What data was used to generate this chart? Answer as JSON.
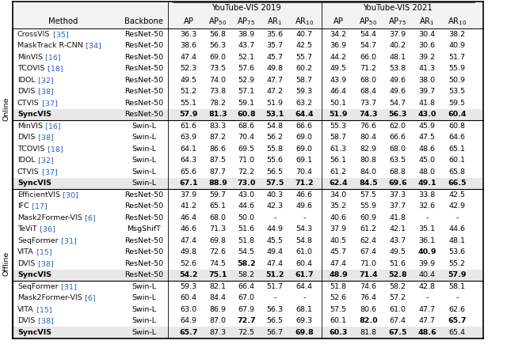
{
  "col_group1": "YouTube-VIS 2019",
  "col_group2": "YouTube-VIS 2021",
  "sections": [
    {
      "label": "Online",
      "rows": [
        {
          "method": "CrossVIS",
          "ref": " [35]",
          "backbone": "ResNet-50",
          "y19": [
            "36.3",
            "56.8",
            "38.9",
            "35.6",
            "40.7"
          ],
          "y21": [
            "34.2",
            "54.4",
            "37.9",
            "30.4",
            "38.2"
          ],
          "bold19": [],
          "bold21": [],
          "syncvis": false
        },
        {
          "method": "MaskTrack R-CNN",
          "ref": " [34]",
          "backbone": "ResNet-50",
          "y19": [
            "38.6",
            "56.3",
            "43.7",
            "35.7",
            "42.5"
          ],
          "y21": [
            "36.9",
            "54.7",
            "40.2",
            "30.6",
            "40.9"
          ],
          "bold19": [],
          "bold21": [],
          "syncvis": false
        },
        {
          "method": "MinVIS",
          "ref": " [16]",
          "backbone": "ResNet-50",
          "y19": [
            "47.4",
            "69.0",
            "52.1",
            "45.7",
            "55.7"
          ],
          "y21": [
            "44.2",
            "66.0",
            "48.1",
            "39.2",
            "51.7"
          ],
          "bold19": [],
          "bold21": [],
          "syncvis": false
        },
        {
          "method": "TCOVIS",
          "ref": " [18]",
          "backbone": "ResNet-50",
          "y19": [
            "52.3",
            "73.5",
            "57.6",
            "49.8",
            "60.2"
          ],
          "y21": [
            "49.5",
            "71.2",
            "53.8",
            "41.3",
            "55.9"
          ],
          "bold19": [],
          "bold21": [],
          "syncvis": false
        },
        {
          "method": "IDOL",
          "ref": " [32]",
          "backbone": "ResNet-50",
          "y19": [
            "49.5",
            "74.0",
            "52.9",
            "47.7",
            "58.7"
          ],
          "y21": [
            "43.9",
            "68.0",
            "49.6",
            "38.0",
            "50.9"
          ],
          "bold19": [],
          "bold21": [],
          "syncvis": false
        },
        {
          "method": "DVIS",
          "ref": " [38]",
          "backbone": "ResNet-50",
          "y19": [
            "51.2",
            "73.8",
            "57.1",
            "47.2",
            "59.3"
          ],
          "y21": [
            "46.4",
            "68.4",
            "49.6",
            "39.7",
            "53.5"
          ],
          "bold19": [],
          "bold21": [],
          "syncvis": false
        },
        {
          "method": "CTVIS",
          "ref": " [37]",
          "backbone": "ResNet-50",
          "y19": [
            "55.1",
            "78.2",
            "59.1",
            "51.9",
            "63.2"
          ],
          "y21": [
            "50.1",
            "73.7",
            "54.7",
            "41.8",
            "59.5"
          ],
          "bold19": [],
          "bold21": [],
          "syncvis": false
        },
        {
          "method": "SyncVIS",
          "ref": "",
          "backbone": "ResNet-50",
          "y19": [
            "57.9",
            "81.3",
            "60.8",
            "53.1",
            "64.4"
          ],
          "y21": [
            "51.9",
            "74.3",
            "56.3",
            "43.0",
            "60.4"
          ],
          "bold19": [
            0,
            1,
            2,
            3,
            4
          ],
          "bold21": [
            0,
            1,
            2,
            3,
            4
          ],
          "syncvis": true
        }
      ]
    },
    {
      "label": "Online",
      "rows": [
        {
          "method": "MinVIS",
          "ref": " [16]",
          "backbone": "Swin-L",
          "y19": [
            "61.6",
            "83.3",
            "68.6",
            "54.8",
            "66.6"
          ],
          "y21": [
            "55.3",
            "76.6",
            "62.0",
            "45.9",
            "60.8"
          ],
          "bold19": [],
          "bold21": [],
          "syncvis": false
        },
        {
          "method": "DVIS",
          "ref": " [38]",
          "backbone": "Swin-L",
          "y19": [
            "63.9",
            "87.2",
            "70.4",
            "56.2",
            "69.0"
          ],
          "y21": [
            "58.7",
            "80.4",
            "66.6",
            "47.5",
            "64.6"
          ],
          "bold19": [],
          "bold21": [],
          "syncvis": false
        },
        {
          "method": "TCOVIS",
          "ref": " [18]",
          "backbone": "Swin-L",
          "y19": [
            "64.1",
            "86.6",
            "69.5",
            "55.8",
            "69.0"
          ],
          "y21": [
            "61.3",
            "82.9",
            "68.0",
            "48.6",
            "65.1"
          ],
          "bold19": [],
          "bold21": [],
          "syncvis": false
        },
        {
          "method": "IDOL",
          "ref": " [32]",
          "backbone": "Swin-L",
          "y19": [
            "64.3",
            "87.5",
            "71.0",
            "55.6",
            "69.1"
          ],
          "y21": [
            "56.1",
            "80.8",
            "63.5",
            "45.0",
            "60.1"
          ],
          "bold19": [],
          "bold21": [],
          "syncvis": false
        },
        {
          "method": "CTVIS",
          "ref": " [37]",
          "backbone": "Swin-L",
          "y19": [
            "65.6",
            "87.7",
            "72.2",
            "56.5",
            "70.4"
          ],
          "y21": [
            "61.2",
            "84.0",
            "68.8",
            "48.0",
            "65.8"
          ],
          "bold19": [],
          "bold21": [],
          "syncvis": false
        },
        {
          "method": "SyncVIS",
          "ref": "",
          "backbone": "Swin-L",
          "y19": [
            "67.1",
            "88.9",
            "73.0",
            "57.5",
            "71.2"
          ],
          "y21": [
            "62.4",
            "84.5",
            "69.6",
            "49.1",
            "66.5"
          ],
          "bold19": [
            0,
            1,
            2,
            3,
            4
          ],
          "bold21": [
            0,
            1,
            2,
            3,
            4
          ],
          "syncvis": true
        }
      ]
    },
    {
      "label": "Offline",
      "rows": [
        {
          "method": "EfficientVIS",
          "ref": " [30]",
          "backbone": "ResNet-50",
          "y19": [
            "37.9",
            "59.7",
            "43.0",
            "40.3",
            "46.6"
          ],
          "y21": [
            "34.0",
            "57.5",
            "37.3",
            "33.8",
            "42.5"
          ],
          "bold19": [],
          "bold21": [],
          "syncvis": false
        },
        {
          "method": "IFC",
          "ref": " [17]",
          "backbone": "ResNet-50",
          "y19": [
            "41.2",
            "65.1",
            "44.6",
            "42.3",
            "49.6"
          ],
          "y21": [
            "35.2",
            "55.9",
            "37.7",
            "32.6",
            "42.9"
          ],
          "bold19": [],
          "bold21": [],
          "syncvis": false
        },
        {
          "method": "Mask2Former-VIS",
          "ref": " [6]",
          "backbone": "ResNet-50",
          "y19": [
            "46.4",
            "68.0",
            "50.0",
            "-",
            "-"
          ],
          "y21": [
            "40.6",
            "60.9",
            "41.8",
            "-",
            "-"
          ],
          "bold19": [],
          "bold21": [],
          "syncvis": false
        },
        {
          "method": "TeViT",
          "ref": " [36]",
          "backbone": "MsgShifT",
          "y19": [
            "46.6",
            "71.3",
            "51.6",
            "44.9",
            "54.3"
          ],
          "y21": [
            "37.9",
            "61.2",
            "42.1",
            "35.1",
            "44.6"
          ],
          "bold19": [],
          "bold21": [],
          "syncvis": false
        },
        {
          "method": "SeqFormer",
          "ref": " [31]",
          "backbone": "ResNet-50",
          "y19": [
            "47.4",
            "69.8",
            "51.8",
            "45.5",
            "54.8"
          ],
          "y21": [
            "40.5",
            "62.4",
            "43.7",
            "36.1",
            "48.1"
          ],
          "bold19": [],
          "bold21": [],
          "syncvis": false
        },
        {
          "method": "VITA",
          "ref": " [15]",
          "backbone": "ResNet-50",
          "y19": [
            "49.8",
            "72.6",
            "54.5",
            "49.4",
            "61.0"
          ],
          "y21": [
            "45.7",
            "67.4",
            "49.5",
            "40.9",
            "53.6"
          ],
          "bold19": [],
          "bold21": [
            3
          ],
          "syncvis": false
        },
        {
          "method": "DVIS",
          "ref": " [38]",
          "backbone": "ResNet-50",
          "y19": [
            "52.6",
            "74.5",
            "58.2",
            "47.4",
            "60.4"
          ],
          "y21": [
            "47.4",
            "71.0",
            "51.6",
            "39.9",
            "55.2"
          ],
          "bold19": [
            2
          ],
          "bold21": [],
          "syncvis": false
        },
        {
          "method": "SyncVIS",
          "ref": "",
          "backbone": "ResNet-50",
          "y19": [
            "54.2",
            "75.1",
            "58.2",
            "51.2",
            "61.7"
          ],
          "y21": [
            "48.9",
            "71.4",
            "52.8",
            "40.4",
            "57.9"
          ],
          "bold19": [
            0,
            1,
            3,
            4
          ],
          "bold21": [
            0,
            1,
            2,
            4
          ],
          "syncvis": true
        }
      ]
    },
    {
      "label": "Offline",
      "rows": [
        {
          "method": "SeqFormer",
          "ref": " [31]",
          "backbone": "Swin-L",
          "y19": [
            "59.3",
            "82.1",
            "66.4",
            "51.7",
            "64.4"
          ],
          "y21": [
            "51.8",
            "74.6",
            "58.2",
            "42.8",
            "58.1"
          ],
          "bold19": [],
          "bold21": [],
          "syncvis": false
        },
        {
          "method": "Mask2Former-VIS",
          "ref": " [6]",
          "backbone": "Swin-L",
          "y19": [
            "60.4",
            "84.4",
            "67.0",
            "-",
            "-"
          ],
          "y21": [
            "52.6",
            "76.4",
            "57.2",
            "-",
            "-"
          ],
          "bold19": [],
          "bold21": [],
          "syncvis": false
        },
        {
          "method": "VITA",
          "ref": " [15]",
          "backbone": "Swin-L",
          "y19": [
            "63.0",
            "86.9",
            "67.9",
            "56.3",
            "68.1"
          ],
          "y21": [
            "57.5",
            "80.6",
            "61.0",
            "47.7",
            "62.6"
          ],
          "bold19": [],
          "bold21": [],
          "syncvis": false
        },
        {
          "method": "DVIS",
          "ref": " [38]",
          "backbone": "Swin-L",
          "y19": [
            "64.9",
            "87.0",
            "72.7",
            "56.5",
            "69.3"
          ],
          "y21": [
            "60.1",
            "82.0",
            "67.4",
            "47.7",
            "65.7"
          ],
          "bold19": [
            2
          ],
          "bold21": [
            1,
            4
          ],
          "syncvis": false
        },
        {
          "method": "SyncVIS",
          "ref": "",
          "backbone": "Swin-L",
          "y19": [
            "65.7",
            "87.3",
            "72.5",
            "56.7",
            "69.8"
          ],
          "y21": [
            "60.3",
            "81.8",
            "67.5",
            "48.6",
            "65.4"
          ],
          "bold19": [
            0,
            4
          ],
          "bold21": [
            0,
            2,
            3
          ],
          "syncvis": true
        }
      ]
    }
  ],
  "bg_syncvis": "#e8e8e8",
  "bg_white": "#ffffff",
  "bg_header": "#f2f2f2",
  "color_blue": "#3060c0",
  "color_black": "#111111",
  "fs_data": 6.8,
  "fs_header": 7.2,
  "fs_label": 6.8
}
